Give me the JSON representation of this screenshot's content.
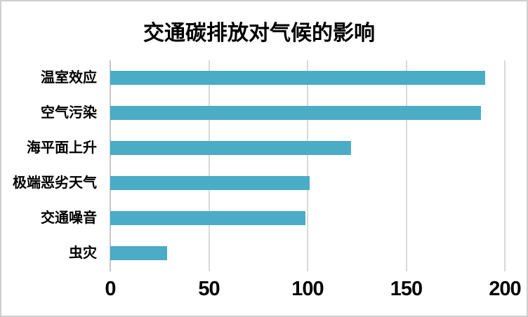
{
  "chart_data": {
    "type": "bar",
    "orientation": "horizontal",
    "title": "交通碳排放对气候的影响",
    "categories": [
      "温室效应",
      "空气污染",
      "海平面上升",
      "极端恶劣天气",
      "交通噪音",
      "虫灾"
    ],
    "values": [
      190,
      188,
      122,
      101,
      99,
      29
    ],
    "xlabel": "",
    "ylabel": "",
    "xlim": [
      0,
      200
    ],
    "xticks": [
      0,
      50,
      100,
      150,
      200
    ],
    "grid": "vertical-gridlines-on",
    "legend": "none",
    "data_labels": "none",
    "colors": {
      "bar": "#4BACC6",
      "gridline": "#D9D9D9",
      "axis_line": "#C6C6C6",
      "text": "#000000",
      "background": "#FFFFFF",
      "border": "#CFCFCF"
    }
  }
}
